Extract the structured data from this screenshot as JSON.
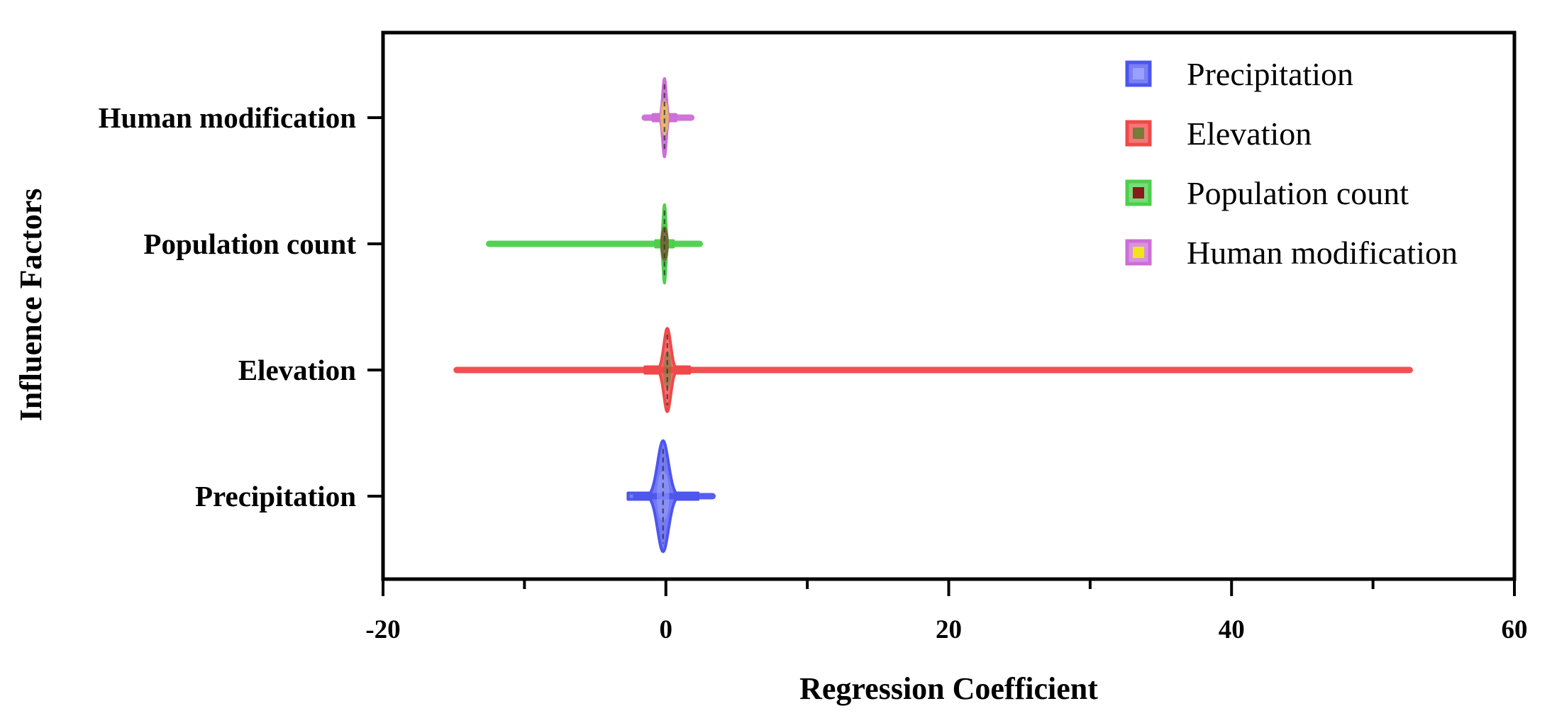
{
  "chart_data": {
    "type": "violin",
    "orientation": "horizontal",
    "xlabel": "Regression Coefficient",
    "ylabel": "Influence Factors",
    "xlim": [
      -20,
      60
    ],
    "x_ticks": [
      -20,
      0,
      20,
      40,
      60
    ],
    "x_minor_ticks": [
      -10,
      10,
      30,
      50
    ],
    "categories": [
      "Human modification",
      "Population count",
      "Elevation",
      "Precipitation"
    ],
    "legend": {
      "placement": "top-right"
    },
    "grid": false,
    "series": [
      {
        "name": "Precipitation",
        "fill": "#4d55f0",
        "inner": "#9aa0ff",
        "min": -2.1,
        "max": 3.3,
        "median": -0.2,
        "max_halfwidth": 0.44,
        "body_spread": 0.55
      },
      {
        "name": "Elevation",
        "fill": "#f04848",
        "inner": "#7a7a3a",
        "min": -14.8,
        "max": 52.6,
        "median": 0.1,
        "max_halfwidth": 0.33,
        "body_spread": 0.35
      },
      {
        "name": "Population count",
        "fill": "#4ccf4c",
        "inner": "#8b1a1a",
        "min": -12.5,
        "max": 2.4,
        "median": -0.1,
        "max_halfwidth": 0.31,
        "body_spread": 0.14
      },
      {
        "name": "Human modification",
        "fill": "#cc6ed6",
        "inner": "#f3e41a",
        "min": -1.5,
        "max": 1.8,
        "median": -0.1,
        "max_halfwidth": 0.31,
        "body_spread": 0.18
      }
    ]
  }
}
